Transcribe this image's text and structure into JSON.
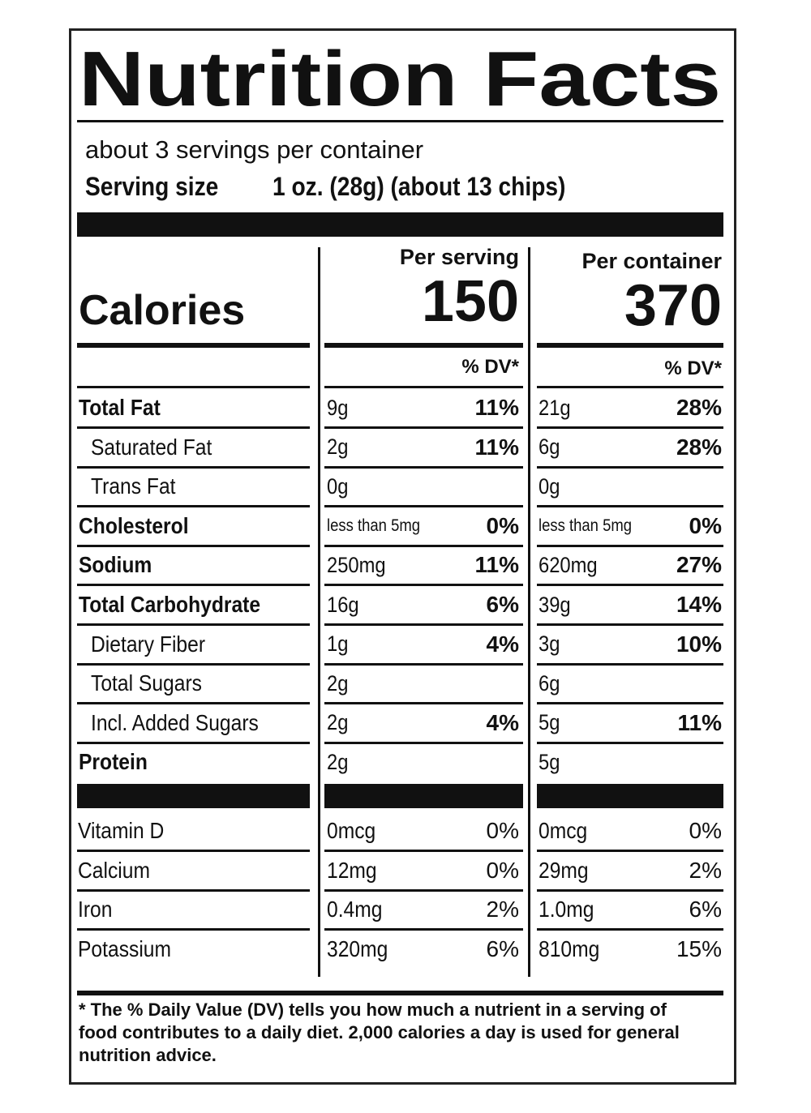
{
  "title": "Nutrition Facts",
  "servings": "about 3 servings per container",
  "serving_size": {
    "label": "Serving size",
    "value": "1 oz. (28g) (about 13 chips)"
  },
  "columns": {
    "serving": "Per serving",
    "container": "Per container"
  },
  "calories": {
    "label": "Calories",
    "serving": "150",
    "container": "370"
  },
  "dv_header": {
    "serving": "% DV*",
    "container": "% DV*"
  },
  "nutrients": [
    {
      "name": "Total Fat",
      "bold": true,
      "sub": false,
      "serving": "9g",
      "serving_dv": "11%",
      "container": "21g",
      "container_dv": "28%"
    },
    {
      "name": "Saturated Fat",
      "bold": false,
      "sub": true,
      "serving": "2g",
      "serving_dv": "11%",
      "container": "6g",
      "container_dv": "28%"
    },
    {
      "name": "Trans Fat",
      "bold": false,
      "sub": true,
      "serving": "0g",
      "container": "0g"
    },
    {
      "name": "Cholesterol",
      "bold": true,
      "sub": false,
      "serving": "less than 5mg",
      "serving_dv": "0%",
      "container": "less than 5mg",
      "container_dv": "0%"
    },
    {
      "name": "Sodium",
      "bold": true,
      "sub": false,
      "serving": "250mg",
      "serving_dv": "11%",
      "container": "620mg",
      "container_dv": "27%"
    },
    {
      "name": "Total Carbohydrate",
      "bold": true,
      "sub": false,
      "serving": "16g",
      "serving_dv": "6%",
      "container": "39g",
      "container_dv": "14%"
    },
    {
      "name": "Dietary Fiber",
      "bold": false,
      "sub": true,
      "serving": "1g",
      "serving_dv": "4%",
      "container": "3g",
      "container_dv": "10%"
    },
    {
      "name": "Total Sugars",
      "bold": false,
      "sub": true,
      "serving": "2g",
      "container": "6g"
    },
    {
      "name": "Incl. Added Sugars",
      "bold": false,
      "sub": true,
      "serving": "2g",
      "serving_dv": "4%",
      "container": "5g",
      "container_dv": "11%"
    },
    {
      "name": "Protein",
      "bold": true,
      "sub": false,
      "serving": "2g",
      "container": "5g"
    }
  ],
  "vitamins": [
    {
      "name": "Vitamin D",
      "serving": "0mcg",
      "serving_dv": "0%",
      "container": "0mcg",
      "container_dv": "0%"
    },
    {
      "name": "Calcium",
      "serving": "12mg",
      "serving_dv": "0%",
      "container": "29mg",
      "container_dv": "2%"
    },
    {
      "name": "Iron",
      "serving": "0.4mg",
      "serving_dv": "2%",
      "container": "1.0mg",
      "container_dv": "6%"
    },
    {
      "name": "Potassium",
      "serving": "320mg",
      "serving_dv": "6%",
      "container": "810mg",
      "container_dv": "15%"
    }
  ],
  "footnote": "* The % Daily Value (DV) tells you how much a nutrient in a serving of food contributes to a daily diet. 2,000 calories a day is used for general nutrition advice."
}
